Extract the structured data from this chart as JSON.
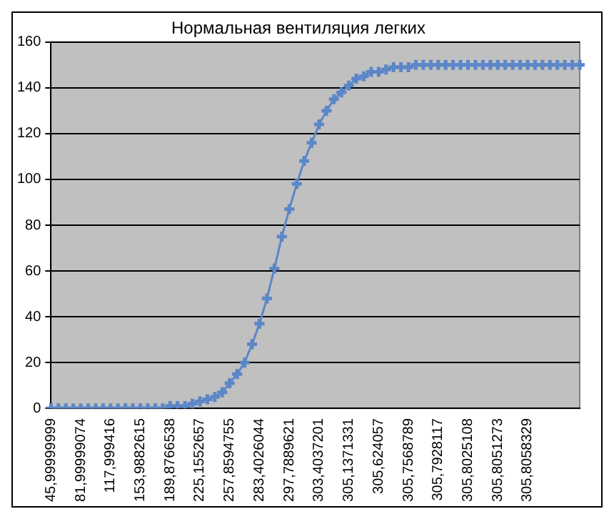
{
  "chart_data": {
    "type": "line",
    "title": "Нормальная вентиляция легких",
    "categories": [
      "45,99999999",
      null,
      null,
      null,
      "81,99999074",
      null,
      null,
      null,
      "117,999416",
      null,
      null,
      null,
      "153,9882615",
      null,
      null,
      null,
      "189,8766538",
      null,
      null,
      null,
      "225,1552657",
      null,
      null,
      null,
      "257,8594755",
      null,
      null,
      null,
      "283,4026044",
      null,
      null,
      null,
      "297,7889621",
      null,
      null,
      null,
      "303,4037201",
      null,
      null,
      null,
      "305,1371331",
      null,
      null,
      null,
      "305,624057",
      null,
      null,
      null,
      "305,7568789",
      null,
      null,
      null,
      "305,7928117",
      null,
      null,
      null,
      "305,8025108",
      null,
      null,
      null,
      "305,8051273",
      null,
      null,
      null,
      "305,8058329",
      null,
      null,
      null,
      null,
      null,
      null,
      null
    ],
    "series": [
      {
        "color": "#5b86c8",
        "values": [
          0,
          0,
          0,
          0,
          0,
          0,
          0,
          0,
          0,
          0,
          0,
          0,
          0,
          0,
          0,
          0,
          1,
          1,
          1,
          2,
          3,
          4,
          5,
          7,
          11,
          15,
          20,
          28,
          37,
          48,
          61,
          75,
          87,
          98,
          108,
          116,
          124,
          130,
          135,
          138,
          141,
          144,
          145,
          147,
          147,
          148,
          149,
          149,
          149,
          150,
          150,
          150,
          150,
          150,
          150,
          150,
          150,
          150,
          150,
          150,
          150,
          150,
          150,
          150,
          150,
          150,
          150,
          150,
          150,
          150,
          150,
          150
        ]
      }
    ],
    "ylim": [
      0,
      160
    ],
    "yticks": [
      0,
      20,
      40,
      60,
      80,
      100,
      120,
      140,
      160
    ],
    "grid": "y",
    "legend": false,
    "marker": "cross",
    "line_style": "solid"
  }
}
